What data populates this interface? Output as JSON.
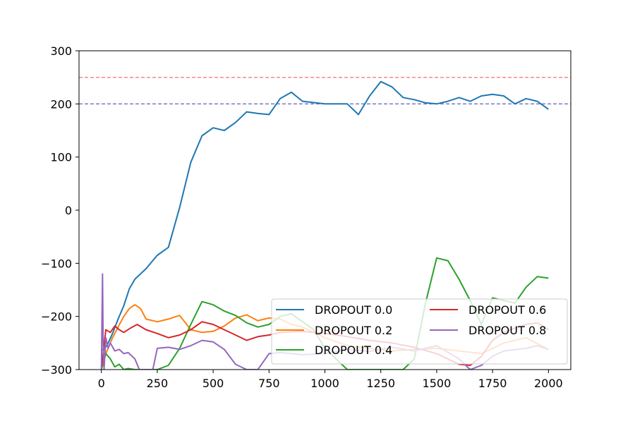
{
  "chart_data": {
    "type": "line",
    "x_range": [
      0,
      2000
    ],
    "xlim": [
      -100,
      2100
    ],
    "ylim": [
      -300,
      300
    ],
    "xticks": [
      0,
      250,
      500,
      750,
      1000,
      1250,
      1500,
      1750,
      2000
    ],
    "yticks": [
      -300,
      -200,
      -100,
      0,
      100,
      200,
      300
    ],
    "tick_labels": {
      "x": [
        "0",
        "250",
        "500",
        "750",
        "1000",
        "1250",
        "1500",
        "1750",
        "2000"
      ],
      "y": [
        "−300",
        "−200",
        "−100",
        "0",
        "100",
        "200",
        "300"
      ]
    },
    "grid": false,
    "legend_position": "lower-right",
    "legend_columns": 2,
    "reference_lines": [
      {
        "y": 250,
        "color": "#f08080",
        "style": "dashed"
      },
      {
        "y": 200,
        "color": "#7070c0",
        "style": "dashed"
      }
    ],
    "series": [
      {
        "name": "DROPOUT 0.0",
        "color": "#1f77b4",
        "x": [
          0,
          25,
          50,
          75,
          100,
          125,
          150,
          200,
          250,
          300,
          350,
          400,
          450,
          500,
          550,
          600,
          650,
          700,
          750,
          800,
          850,
          900,
          1000,
          1100,
          1150,
          1200,
          1250,
          1300,
          1350,
          1400,
          1450,
          1500,
          1550,
          1600,
          1650,
          1700,
          1750,
          1800,
          1850,
          1900,
          1950,
          2000
        ],
        "y": [
          -265,
          -255,
          -232,
          -205,
          -180,
          -148,
          -130,
          -110,
          -85,
          -70,
          5,
          90,
          140,
          155,
          150,
          165,
          185,
          182,
          180,
          210,
          222,
          205,
          200,
          200,
          180,
          215,
          242,
          232,
          212,
          208,
          202,
          200,
          205,
          212,
          205,
          215,
          218,
          215,
          200,
          210,
          205,
          190
        ]
      },
      {
        "name": "DROPOUT 0.2",
        "color": "#ff7f0e",
        "x": [
          0,
          25,
          50,
          75,
          100,
          125,
          150,
          175,
          200,
          250,
          300,
          350,
          400,
          450,
          500,
          550,
          600,
          650,
          700,
          750,
          800,
          850,
          900,
          950,
          1000,
          1100,
          1200,
          1300,
          1400,
          1500,
          1600,
          1700,
          1800,
          1900,
          2000
        ],
        "y": [
          -290,
          -265,
          -240,
          -220,
          -200,
          -185,
          -178,
          -185,
          -205,
          -210,
          -205,
          -198,
          -225,
          -230,
          -228,
          -218,
          -203,
          -197,
          -208,
          -203,
          -205,
          -215,
          -220,
          -230,
          -240,
          -255,
          -260,
          -265,
          -262,
          -260,
          -265,
          -270,
          -250,
          -240,
          -262
        ]
      },
      {
        "name": "DROPOUT 0.4",
        "color": "#2ca02c",
        "x": [
          0,
          20,
          40,
          60,
          80,
          100,
          120,
          150,
          200,
          250,
          300,
          350,
          400,
          450,
          500,
          550,
          600,
          650,
          700,
          750,
          800,
          850,
          900,
          950,
          1000,
          1050,
          1100,
          1150,
          1200,
          1250,
          1300,
          1350,
          1400,
          1450,
          1500,
          1550,
          1600,
          1650,
          1700,
          1750,
          1800,
          1850,
          1900,
          1950,
          2000
        ],
        "y": [
          -300,
          -270,
          -280,
          -295,
          -290,
          -300,
          -298,
          -300,
          -300,
          -300,
          -292,
          -260,
          -215,
          -172,
          -178,
          -190,
          -198,
          -212,
          -220,
          -215,
          -200,
          -195,
          -210,
          -225,
          -260,
          -280,
          -300,
          -300,
          -300,
          -300,
          -300,
          -300,
          -280,
          -175,
          -90,
          -95,
          -130,
          -170,
          -215,
          -165,
          -170,
          -175,
          -145,
          -125,
          -128
        ]
      },
      {
        "name": "DROPOUT 0.6",
        "color": "#d62728",
        "x": [
          0,
          20,
          40,
          60,
          80,
          100,
          130,
          160,
          200,
          250,
          300,
          350,
          400,
          450,
          500,
          550,
          600,
          650,
          700,
          750,
          800,
          900,
          1000,
          1100,
          1200,
          1300,
          1400,
          1500,
          1550,
          1600,
          1650,
          1700,
          1750,
          1800,
          1850,
          1900,
          1950,
          2000
        ],
        "y": [
          -300,
          -225,
          -230,
          -218,
          -225,
          -230,
          -222,
          -215,
          -225,
          -232,
          -240,
          -235,
          -225,
          -210,
          -215,
          -225,
          -235,
          -245,
          -238,
          -235,
          -230,
          -228,
          -232,
          -238,
          -245,
          -250,
          -258,
          -270,
          -280,
          -290,
          -292,
          -275,
          -245,
          -230,
          -222,
          -215,
          -212,
          -225
        ]
      },
      {
        "name": "DROPOUT 0.8",
        "color": "#9467bd",
        "x": [
          0,
          5,
          8,
          12,
          20,
          30,
          40,
          60,
          80,
          100,
          120,
          150,
          170,
          200,
          230,
          250,
          300,
          350,
          400,
          450,
          500,
          550,
          600,
          650,
          700,
          750,
          800,
          900,
          1000,
          1100,
          1200,
          1300,
          1400,
          1500,
          1600,
          1650,
          1700,
          1750,
          1800,
          1900,
          1950,
          2000
        ],
        "y": [
          -300,
          -120,
          -250,
          -300,
          -240,
          -260,
          -250,
          -265,
          -262,
          -270,
          -268,
          -280,
          -300,
          -300,
          -300,
          -260,
          -258,
          -262,
          -255,
          -245,
          -248,
          -262,
          -290,
          -300,
          -300,
          -270,
          -268,
          -272,
          -270,
          -262,
          -266,
          -258,
          -265,
          -255,
          -280,
          -300,
          -292,
          -275,
          -265,
          -260,
          -255,
          -262
        ]
      }
    ]
  }
}
